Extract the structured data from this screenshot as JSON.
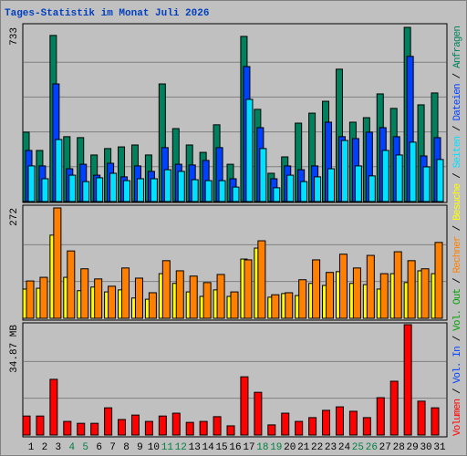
{
  "chart_data": {
    "type": "bar",
    "title": "Tages-Statistik im Monat Juli 2026",
    "categories": [
      "1",
      "2",
      "3",
      "4",
      "5",
      "6",
      "7",
      "8",
      "9",
      "10",
      "11",
      "12",
      "13",
      "14",
      "15",
      "16",
      "17",
      "18",
      "19",
      "20",
      "21",
      "22",
      "23",
      "24",
      "25",
      "26",
      "27",
      "28",
      "29",
      "30",
      "31"
    ],
    "category_colors": [
      "#000000",
      "#000000",
      "#000000",
      "#008040",
      "#008040",
      "#000000",
      "#000000",
      "#000000",
      "#000000",
      "#000000",
      "#008040",
      "#008040",
      "#000000",
      "#000000",
      "#000000",
      "#000000",
      "#000000",
      "#008040",
      "#008040",
      "#000000",
      "#000000",
      "#000000",
      "#000000",
      "#000000",
      "#008040",
      "#008040",
      "#000000",
      "#000000",
      "#000000",
      "#000000",
      "#000000"
    ],
    "legend_separator": " / ",
    "panels": [
      {
        "ylim": [
          0,
          733
        ],
        "yticks": [
          733
        ],
        "grid": true,
        "grid_divisions": 5,
        "series": [
          {
            "name": "Anfragen",
            "color": "#00805c",
            "values": [
              292,
              215,
              699,
              273,
              269,
              196,
              223,
              230,
              238,
              196,
              495,
              307,
              238,
              207,
              323,
              157,
              695,
              388,
              119,
              188,
              330,
              372,
              422,
              557,
              334,
              353,
              453,
              392,
              733,
              407,
              457
            ]
          },
          {
            "name": "Dateien",
            "color": "#0040ff",
            "values": [
              215,
              150,
              495,
              138,
              157,
              111,
              161,
              104,
              150,
              127,
              227,
              157,
              154,
              173,
              227,
              96,
              568,
              311,
              96,
              150,
              134,
              150,
              334,
              273,
              265,
              292,
              311,
              273,
              611,
              192,
              269
            ]
          },
          {
            "name": "Seiten",
            "color": "#00e0ff",
            "values": [
              150,
              96,
              261,
              111,
              84,
              100,
              119,
              88,
              96,
              96,
              134,
              127,
              92,
              88,
              88,
              61,
              430,
              223,
              58,
              111,
              84,
              104,
              138,
              257,
              150,
              108,
              215,
              196,
              250,
              146,
              177
            ]
          }
        ]
      },
      {
        "ylim": [
          0,
          272
        ],
        "yticks": [
          272
        ],
        "grid": true,
        "grid_divisions": 3,
        "series": [
          {
            "name": "Besuche",
            "color": "#ffff00",
            "values": [
              72,
              74,
              205,
              101,
              68,
              77,
              65,
              70,
              50,
              47,
              110,
              86,
              65,
              54,
              70,
              54,
              146,
              173,
              52,
              61,
              56,
              86,
              81,
              115,
              86,
              83,
              72,
              110,
              88,
              117,
              110
            ]
          },
          {
            "name": "Rechner",
            "color": "#ff8000",
            "values": [
              92,
              101,
              272,
              166,
              122,
              97,
              79,
              124,
              99,
              63,
              142,
              117,
              104,
              88,
              108,
              65,
              144,
              191,
              58,
              63,
              95,
              144,
              113,
              158,
              124,
              155,
              110,
              164,
              142,
              122,
              187
            ]
          }
        ]
      },
      {
        "ylim": [
          0,
          34.87
        ],
        "yticks": [
          {
            "value": 34.87,
            "label": "34.87 MB"
          }
        ],
        "grid": true,
        "grid_divisions": 3,
        "series": [
          {
            "name": "Volumen",
            "color": "#ff0000",
            "values": [
              6.0,
              6.0,
              17.6,
              4.3,
              3.7,
              3.7,
              8.6,
              4.9,
              6.3,
              4.3,
              6.0,
              6.9,
              4.0,
              4.3,
              5.8,
              2.9,
              18.4,
              13.5,
              3.2,
              6.9,
              4.3,
              5.5,
              7.8,
              8.9,
              7.5,
              5.5,
              11.8,
              17.0,
              34.87,
              10.7,
              8.6
            ]
          }
        ],
        "legend_only": [
          {
            "name": "Vol. In",
            "color": "#0040ff"
          },
          {
            "name": "Vol. Out",
            "color": "#00a000"
          }
        ]
      }
    ]
  }
}
